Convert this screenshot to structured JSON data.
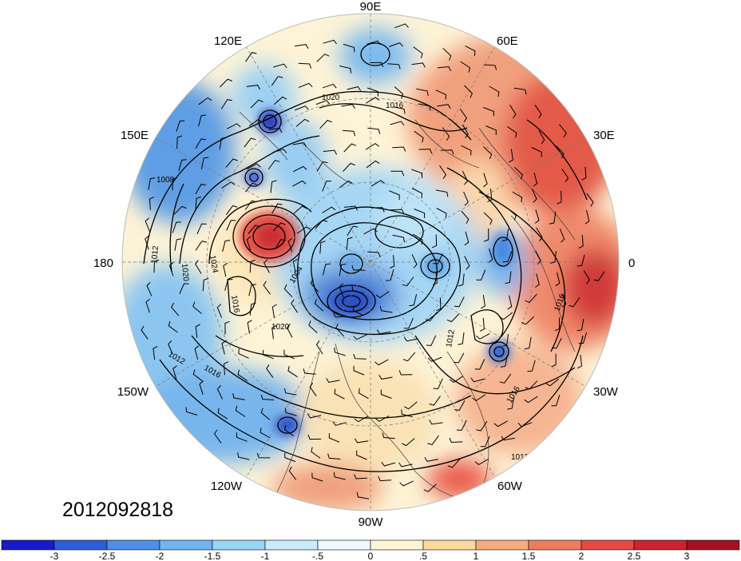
{
  "map": {
    "timestamp": "2012092818",
    "projection": "north-polar-stereographic",
    "longitude_labels": [
      "90E",
      "60E",
      "30E",
      "0",
      "30W",
      "60W",
      "90W",
      "120W",
      "150W",
      "180",
      "150E",
      "120E"
    ],
    "contour_labels": [
      "1020",
      "1016",
      "1008",
      "1024",
      "1020",
      "1012",
      "1016",
      "1012",
      "1016",
      "1012",
      "1020",
      "1016",
      "1012",
      "1016",
      "1004"
    ],
    "anomaly_centers": [
      {
        "name": "low-over-east-siberia",
        "sign": "negative",
        "strength": -3
      },
      {
        "name": "low-over-canadian-arctic",
        "sign": "negative",
        "strength": -3
      },
      {
        "name": "low-over-north-atlantic",
        "sign": "negative",
        "strength": -2.5
      },
      {
        "name": "low-over-gulf-of-alaska",
        "sign": "negative",
        "strength": -2.5
      },
      {
        "name": "high-over-bering-sea",
        "sign": "positive",
        "strength": 2.5
      },
      {
        "name": "high-over-eastern-europe",
        "sign": "positive",
        "strength": 2.5
      }
    ]
  },
  "colorbar": {
    "ticks": [
      "-3",
      "-2.5",
      "-2",
      "-1.5",
      "-1",
      "-.5",
      "0",
      ".5",
      "1",
      "1.5",
      "2",
      "2.5",
      "3"
    ],
    "colors": [
      "#1a1acd",
      "#2f5fd8",
      "#4d8fe6",
      "#6fb5ef",
      "#97d7f5",
      "#c9ecfb",
      "#eef9fd",
      "#fdf5d3",
      "#fbd99a",
      "#f6ac7c",
      "#ee7d5e",
      "#e44b44",
      "#cc2233",
      "#a80f25"
    ]
  }
}
